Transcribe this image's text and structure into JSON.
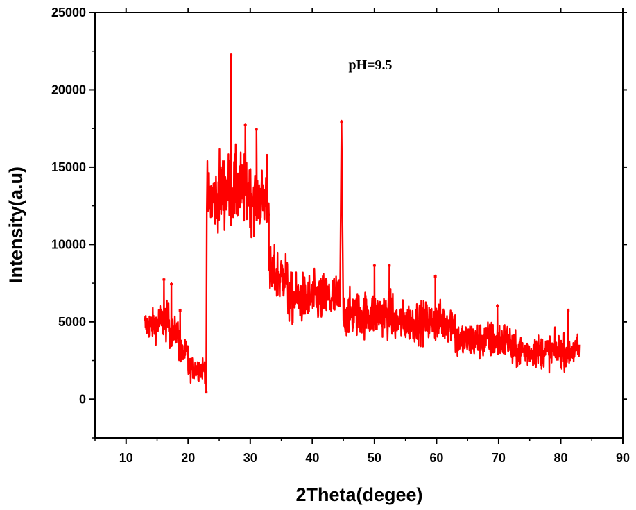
{
  "chart_data": {
    "type": "line",
    "title": "",
    "xlabel": "2Theta(degee)",
    "ylabel": "Intensity(a.u)",
    "xlim": [
      5,
      90
    ],
    "ylim": [
      -2500,
      25000
    ],
    "xticks": [
      10,
      20,
      30,
      40,
      50,
      60,
      70,
      80,
      90
    ],
    "yticks": [
      0,
      5000,
      10000,
      15000,
      20000,
      25000
    ],
    "annotation": "pH=9.5",
    "grid": false,
    "legend": "none",
    "series": [
      {
        "color": "#ff0000",
        "segments": [
          {
            "x0": 13.0,
            "x1": 15.0,
            "base": 4800,
            "amp": 1300
          },
          {
            "x0": 15.0,
            "x1": 17.0,
            "base": 5000,
            "amp": 1600
          },
          {
            "x0": 17.0,
            "x1": 18.5,
            "base": 4300,
            "amp": 1300
          },
          {
            "x0": 18.5,
            "x1": 20.0,
            "base": 3000,
            "amp": 1100
          },
          {
            "x0": 20.0,
            "x1": 22.9,
            "base": 2000,
            "amp": 1000
          },
          {
            "x0": 23.0,
            "x1": 25.0,
            "base": 13000,
            "amp": 2600
          },
          {
            "x0": 25.0,
            "x1": 30.0,
            "base": 13500,
            "amp": 3200
          },
          {
            "x0": 30.0,
            "x1": 33.0,
            "base": 13000,
            "amp": 2700
          },
          {
            "x0": 33.0,
            "x1": 36.0,
            "base": 8000,
            "amp": 2300
          },
          {
            "x0": 36.0,
            "x1": 44.4,
            "base": 6500,
            "amp": 2100
          },
          {
            "x0": 45.0,
            "x1": 53.0,
            "base": 5500,
            "amp": 1900
          },
          {
            "x0": 53.0,
            "x1": 63.0,
            "base": 5000,
            "amp": 1700
          },
          {
            "x0": 63.0,
            "x1": 72.0,
            "base": 3800,
            "amp": 1600
          },
          {
            "x0": 72.0,
            "x1": 83.0,
            "base": 3100,
            "amp": 1400
          }
        ],
        "peaks": [
          {
            "x": 26.9,
            "y": 22300
          },
          {
            "x": 44.7,
            "y": 18000
          },
          {
            "x": 29.2,
            "y": 17800
          },
          {
            "x": 31.0,
            "y": 17500
          },
          {
            "x": 32.7,
            "y": 15800
          },
          {
            "x": 16.1,
            "y": 7800
          },
          {
            "x": 17.3,
            "y": 7500
          },
          {
            "x": 18.7,
            "y": 5800
          },
          {
            "x": 22.9,
            "y": 500
          },
          {
            "x": 33.0,
            "y": 12000
          },
          {
            "x": 52.4,
            "y": 8700
          },
          {
            "x": 50.0,
            "y": 8700
          },
          {
            "x": 59.8,
            "y": 8000
          },
          {
            "x": 69.8,
            "y": 6100
          },
          {
            "x": 81.2,
            "y": 5800
          }
        ]
      }
    ]
  }
}
